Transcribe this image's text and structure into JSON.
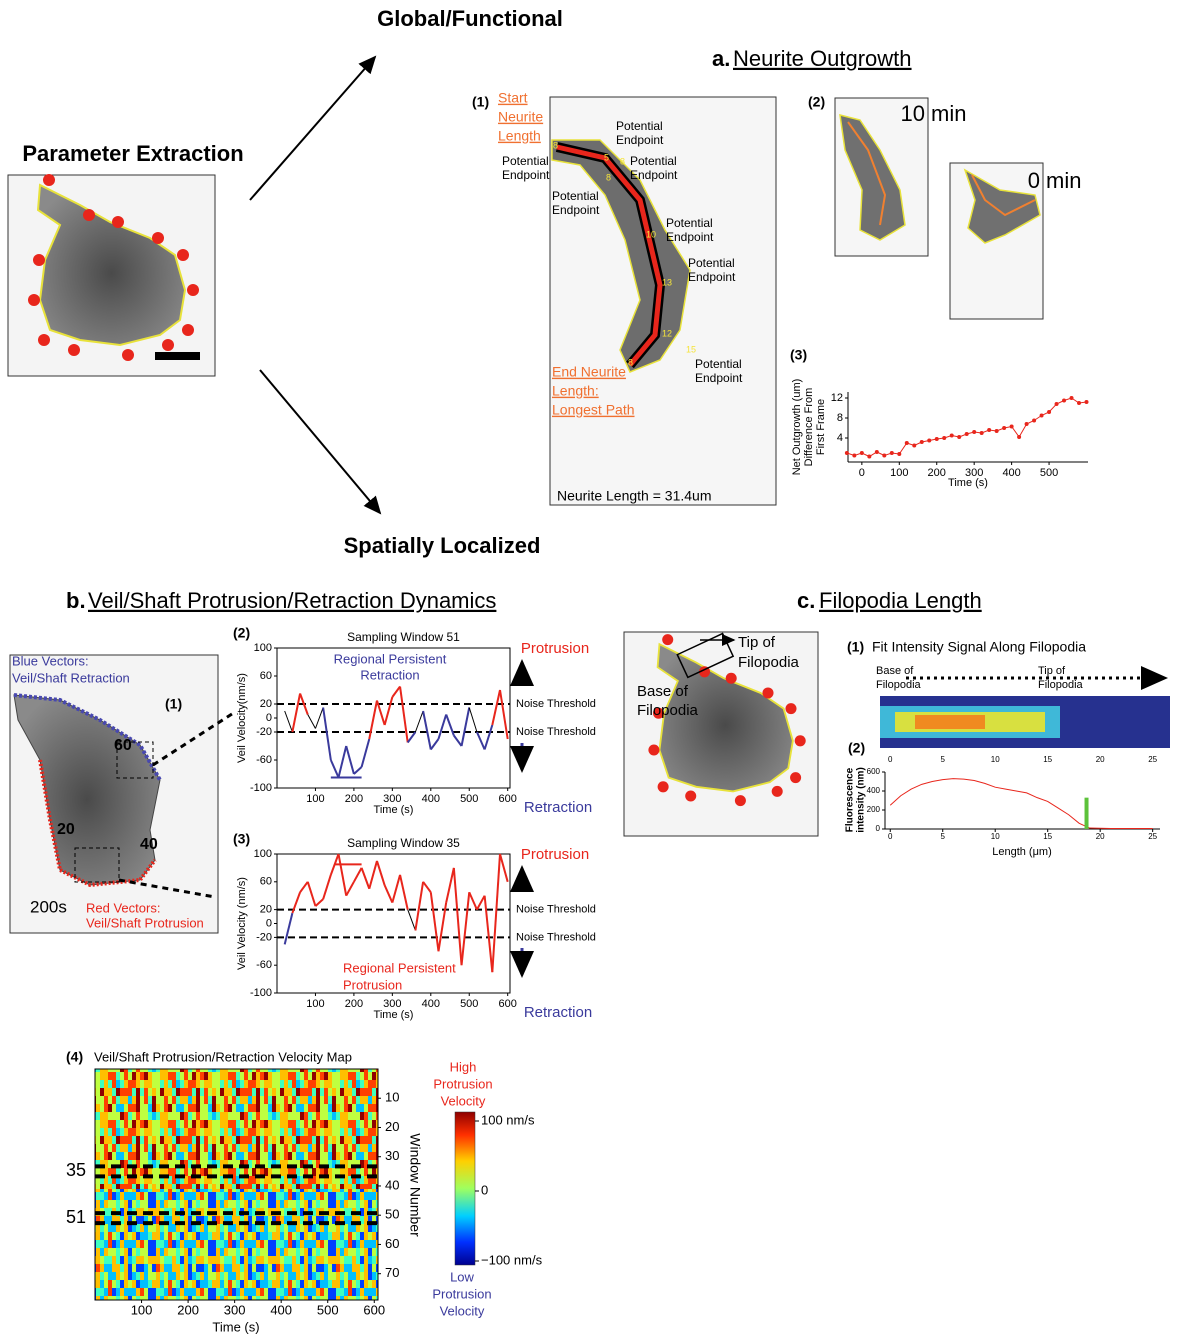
{
  "headers": {
    "global": "Global/Functional",
    "parameter": "Parameter Extraction",
    "spatial": "Spatially Localized"
  },
  "panel_a": {
    "letter": "a.",
    "title": "Neurite Outgrowth",
    "image1": {
      "label": "(1)",
      "start": [
        "Start",
        "Neurite",
        "Length"
      ],
      "endpoint": [
        "Potential",
        "Endpoint"
      ],
      "end": [
        "End Neurite",
        "Length:",
        "Longest Path"
      ],
      "length": "Neurite Length = 31.4um",
      "nodes": [
        "8",
        "5",
        "8",
        "8",
        "10",
        "13",
        "12",
        "8",
        "15"
      ]
    },
    "image2": {
      "label": "(2)",
      "late": [
        "10",
        "min"
      ],
      "early": [
        "0",
        "min"
      ]
    },
    "plot": {
      "label": "(3)",
      "ylabel": [
        "Net Outgrowth (um)",
        "Difference From",
        "First Frame"
      ],
      "xlabel": "Time (s)",
      "x": [
        -40,
        -20,
        0,
        20,
        40,
        60,
        80,
        100,
        120,
        140,
        160,
        180,
        200,
        220,
        240,
        260,
        280,
        300,
        320,
        340,
        360,
        380,
        400,
        420,
        440,
        460,
        480,
        500,
        520,
        540,
        560,
        580,
        600
      ],
      "values": [
        1,
        0.5,
        1,
        0.3,
        1.2,
        0.5,
        1,
        0.8,
        3,
        2.5,
        3.2,
        3.5,
        3.8,
        4,
        4.5,
        4.2,
        4.8,
        5.2,
        5,
        5.6,
        5.4,
        6,
        6.3,
        4.2,
        6.8,
        7.5,
        8.5,
        9.2,
        10.8,
        11.5,
        12,
        11,
        11.2
      ],
      "color": "#e8261c",
      "xlim": [
        -37,
        604
      ],
      "ylim": [
        -0.8,
        13.2
      ],
      "xticks": [
        0,
        100,
        200,
        300,
        400,
        500
      ],
      "yticks": [
        4,
        8,
        12
      ]
    }
  },
  "panel_b": {
    "letter": "b.",
    "title": "Veil/Shaft Protrusion/Retraction Dynamics",
    "image": {
      "blue": [
        "Blue Vectors:",
        "Veil/Shaft Retraction"
      ],
      "label": "(1)",
      "windows": [
        "60",
        "20",
        "40"
      ],
      "time": "200s",
      "red": [
        "Red Vectors:",
        "Veil/Shaft Protrusion"
      ]
    },
    "colors": {
      "protrusion": "#e8261c",
      "retraction": "#3a3a9c",
      "neutral": "#000000"
    },
    "protrusion": "Protrusion",
    "retraction": "Retraction",
    "noise": "Noise Threshold",
    "plots": [
      {
        "label": "(2)",
        "title": "Sampling Window 51",
        "ylabel": "Veil Velocity(nm/s)",
        "xlabel": "Time (s)",
        "annotation": [
          "Regional Persistent",
          "Retraction"
        ],
        "x": [
          20,
          40,
          60,
          80,
          100,
          120,
          140,
          160,
          180,
          200,
          220,
          240,
          260,
          280,
          300,
          320,
          340,
          360,
          380,
          400,
          420,
          440,
          460,
          480,
          500,
          520,
          540,
          560,
          580,
          600
        ],
        "values": [
          10,
          -20,
          35,
          5,
          -15,
          15,
          -60,
          -85,
          -40,
          -80,
          -70,
          -30,
          25,
          -10,
          30,
          45,
          -35,
          -20,
          10,
          -45,
          -30,
          5,
          -25,
          -40,
          15,
          -20,
          -45,
          -10,
          40,
          -30
        ],
        "highlight": {
          "x": [
            140,
            220
          ],
          "y": -85
        },
        "thresholds": [
          20,
          -20
        ],
        "xlim": [
          0,
          606
        ],
        "ylim": [
          -100,
          100
        ],
        "xticks": [
          100,
          200,
          300,
          400,
          500,
          600
        ],
        "yticks": [
          100,
          60,
          20,
          0,
          -20,
          -60,
          -100
        ]
      },
      {
        "label": "(3)",
        "title": "Sampling Window 35",
        "ylabel": "Veil Velocity  (nm/s)",
        "xlabel": "Time (s)",
        "annotation": [
          "Regional Persistent",
          "Protrusion"
        ],
        "x": [
          20,
          40,
          60,
          80,
          100,
          120,
          140,
          160,
          180,
          200,
          220,
          240,
          260,
          280,
          300,
          320,
          340,
          360,
          380,
          400,
          420,
          440,
          460,
          480,
          500,
          520,
          540,
          560,
          580,
          600
        ],
        "values": [
          -30,
          15,
          45,
          60,
          25,
          35,
          70,
          100,
          40,
          60,
          80,
          50,
          90,
          55,
          30,
          70,
          20,
          -10,
          60,
          45,
          -40,
          30,
          80,
          -60,
          45,
          20,
          40,
          -70,
          100,
          60
        ],
        "highlight": {
          "x": [
            150,
            220
          ],
          "y": 85
        },
        "thresholds": [
          20,
          -20
        ],
        "xlim": [
          0,
          606
        ],
        "ylim": [
          -100,
          100
        ],
        "xticks": [
          100,
          200,
          300,
          400,
          500,
          600
        ],
        "yticks": [
          100,
          60,
          20,
          0,
          -20,
          -60,
          -100
        ]
      }
    ],
    "map": {
      "label": "(4)",
      "title": "Veil/Shaft  Protrusion/Retraction Velocity Map",
      "ylabel": "Window Number",
      "xlabel": "Time (s)",
      "xlim": [
        0,
        608
      ],
      "ylim": [
        0,
        79
      ],
      "xticks": [
        100,
        200,
        300,
        400,
        500,
        600
      ],
      "yticks": [
        10,
        20,
        30,
        40,
        50,
        60,
        70
      ],
      "highlight_windows": [
        35,
        51
      ],
      "colorbar": {
        "high": [
          "High",
          "Protrusion",
          "Velocity"
        ],
        "low": [
          "Low",
          "Protrusion",
          "Velocity"
        ],
        "clim": [
          -100,
          100
        ],
        "ticks": [
          {
            "value": 100,
            "label": "100 nm/s"
          },
          0,
          {
            "value": -100,
            "label": "−100 nm/s"
          }
        ]
      }
    }
  },
  "panel_c": {
    "letter": "c.",
    "title": "Filopodia Length",
    "image": {
      "tip": [
        "Tip of",
        "Filopodia"
      ],
      "base": [
        "Base of",
        "Filopodia"
      ]
    },
    "kymo": {
      "label": "(1)",
      "title": "Fit Intensity Signal Along Filopodia",
      "base": [
        "Base of",
        "Filopodia"
      ],
      "tip": [
        "Tip of",
        "Filopodia"
      ]
    },
    "plot": {
      "label": "(2)",
      "ylabel": [
        "Fluorescence",
        "intensity (nm)"
      ],
      "xlabel": "Length (μm)",
      "x": [
        0,
        1,
        2,
        3,
        4,
        5,
        6,
        7,
        8,
        9,
        10,
        11,
        12,
        13,
        14,
        15,
        16,
        17,
        18,
        19,
        20,
        21,
        22,
        23,
        24,
        25
      ],
      "values": [
        250,
        350,
        420,
        470,
        500,
        520,
        530,
        525,
        510,
        480,
        440,
        420,
        400,
        380,
        330,
        290,
        220,
        150,
        60,
        10,
        8,
        5,
        5,
        5,
        5,
        5
      ],
      "color": "#e8261c",
      "fit_marker": {
        "x": 18.7,
        "height": 330,
        "color": "#5cc23a"
      },
      "xlim": [
        -0.5,
        25.7
      ],
      "ylim": [
        0,
        600
      ],
      "xticks": [
        0,
        5,
        10,
        15,
        20,
        25
      ],
      "yticks": [
        0,
        200,
        400,
        600
      ]
    }
  }
}
